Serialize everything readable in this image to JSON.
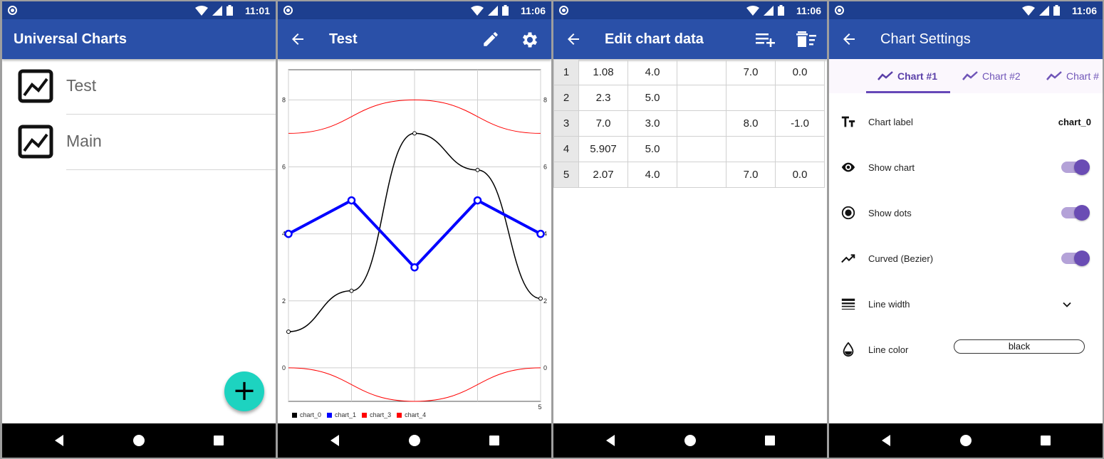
{
  "status_time": [
    "11:01",
    "11:06",
    "11:06",
    "11:06"
  ],
  "screen1": {
    "title": "Universal Charts",
    "items": [
      {
        "label": "Test"
      },
      {
        "label": "Main"
      }
    ],
    "fab_icon": "+"
  },
  "screen2": {
    "title": "Test",
    "actions": [
      "edit-icon",
      "settings-icon"
    ],
    "legend": [
      {
        "name": "chart_0",
        "color": "#000000"
      },
      {
        "name": "chart_1",
        "color": "#0000ff"
      },
      {
        "name": "chart_3",
        "color": "#ff0000"
      },
      {
        "name": "chart_4",
        "color": "#ff0000"
      }
    ],
    "y_ticks_left": [
      "8",
      "6",
      "4",
      "2",
      "0"
    ],
    "y_ticks_right": [
      "8",
      "6",
      "4",
      "2",
      "0"
    ],
    "x_tick_last": "5"
  },
  "chart_data": {
    "type": "line",
    "x": [
      1,
      2,
      3,
      4,
      5
    ],
    "ylim": [
      -1.0,
      8.9
    ],
    "xlim": [
      1,
      5
    ],
    "grid": true,
    "legend": "bottom-left",
    "series": [
      {
        "name": "chart_0",
        "values": [
          1.08,
          2.3,
          7.0,
          5.907,
          2.07
        ],
        "color": "#000000",
        "curved": true,
        "dots": true
      },
      {
        "name": "chart_1",
        "values": [
          4.0,
          5.0,
          3.0,
          5.0,
          4.0
        ],
        "color": "#0000ff",
        "curved": false,
        "dots": true
      },
      {
        "name": "chart_3",
        "values": [
          7.0,
          null,
          8.0,
          null,
          7.0
        ],
        "color": "#ff0000",
        "curved": true,
        "dots": false
      },
      {
        "name": "chart_4",
        "values": [
          0.0,
          null,
          -1.0,
          null,
          0.0
        ],
        "color": "#ff0000",
        "curved": true,
        "dots": false
      }
    ]
  },
  "screen3": {
    "title": "Edit chart data",
    "actions": [
      "add-row-icon",
      "delete-icon"
    ],
    "rows": [
      {
        "num": "1",
        "cells": [
          "1.08",
          "4.0",
          "",
          "7.0",
          "0.0"
        ]
      },
      {
        "num": "2",
        "cells": [
          "2.3",
          "5.0",
          "",
          "",
          ""
        ]
      },
      {
        "num": "3",
        "cells": [
          "7.0",
          "3.0",
          "",
          "8.0",
          "-1.0"
        ]
      },
      {
        "num": "4",
        "cells": [
          "5.907",
          "5.0",
          "",
          "",
          ""
        ]
      },
      {
        "num": "5",
        "cells": [
          "2.07",
          "4.0",
          "",
          "7.0",
          "0.0"
        ]
      }
    ]
  },
  "screen4": {
    "title": "Chart Settings",
    "tabs": [
      "Chart #1",
      "Chart #2",
      "Chart #"
    ],
    "settings": {
      "label": {
        "label": "Chart label",
        "value": "chart_0"
      },
      "show_chart": {
        "label": "Show chart",
        "on": true
      },
      "show_dots": {
        "label": "Show dots",
        "on": true
      },
      "curved": {
        "label": "Curved (Bezier)",
        "on": true
      },
      "line_width": {
        "label": "Line width"
      },
      "line_color": {
        "label": "Line color",
        "value": "black"
      }
    }
  }
}
